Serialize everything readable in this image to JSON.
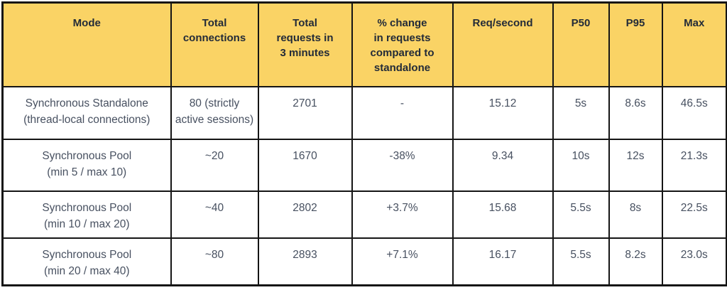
{
  "colors": {
    "header_background": "#FAD365",
    "header_text": "#232B38",
    "body_text": "#475060",
    "border": "#151515",
    "row_background": "#FFFFFF"
  },
  "chart_data": {
    "type": "table",
    "title": "",
    "columns": [
      "Mode",
      "Total connections",
      "Total requests in 3 minutes",
      "% change in requests compared to standalone",
      "Req/second",
      "P50",
      "P95",
      "Max"
    ],
    "headers_display": {
      "mode": "Mode",
      "total_connections": "Total\nconnections",
      "total_requests_3min": "Total\nrequests in\n3 minutes",
      "pct_change": "% change\nin requests\ncompared to\nstandalone",
      "req_per_second": "Req/second",
      "p50": "P50",
      "p95": "P95",
      "max": "Max"
    },
    "rows": [
      {
        "mode": "Synchronous Standalone\n(thread-local connections)",
        "total_connections": "80 (strictly\nactive sessions)",
        "total_requests_3min": "2701",
        "pct_change": "-",
        "req_per_second": "15.12",
        "p50": "5s",
        "p95": "8.6s",
        "max": "46.5s"
      },
      {
        "mode": "Synchronous Pool\n(min 5 / max 10)",
        "total_connections": "~20",
        "total_requests_3min": "1670",
        "pct_change": "-38%",
        "req_per_second": "9.34",
        "p50": "10s",
        "p95": "12s",
        "max": "21.3s"
      },
      {
        "mode": "Synchronous Pool\n(min 10 / max 20)",
        "total_connections": "~40",
        "total_requests_3min": "2802",
        "pct_change": "+3.7%",
        "req_per_second": "15.68",
        "p50": "5.5s",
        "p95": "8s",
        "max": "22.5s"
      },
      {
        "mode": "Synchronous Pool\n(min 20 / max 40)",
        "total_connections": "~80",
        "total_requests_3min": "2893",
        "pct_change": "+7.1%",
        "req_per_second": "16.17",
        "p50": "5.5s",
        "p95": "8.2s",
        "max": "23.0s"
      }
    ]
  }
}
